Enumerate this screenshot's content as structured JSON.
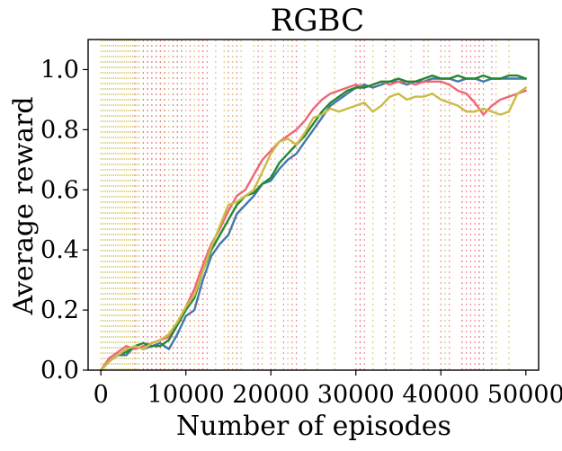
{
  "chart_data": {
    "type": "line",
    "title": "RGBC",
    "xlabel": "Number of episodes",
    "ylabel": "Average reward",
    "xlim": [
      -1500,
      51500
    ],
    "ylim": [
      0.0,
      1.1
    ],
    "x_ticks": [
      0,
      10000,
      20000,
      30000,
      40000,
      50000
    ],
    "x_tick_labels": [
      "0",
      "10000",
      "20000",
      "30000",
      "40000",
      "50000"
    ],
    "y_ticks": [
      0.0,
      0.2,
      0.4,
      0.6,
      0.8,
      1.0
    ],
    "y_tick_labels": [
      "0.0",
      "0.2",
      "0.4",
      "0.6",
      "0.8",
      "1.0"
    ],
    "grid": false,
    "legend": "none",
    "x": [
      0,
      1000,
      2000,
      3000,
      4000,
      5000,
      6000,
      7000,
      8000,
      9000,
      10000,
      11000,
      12000,
      13000,
      14000,
      15000,
      16000,
      17000,
      18000,
      19000,
      20000,
      21000,
      22000,
      23000,
      24000,
      25000,
      26000,
      27000,
      28000,
      29000,
      30000,
      31000,
      32000,
      33000,
      34000,
      35000,
      36000,
      37000,
      38000,
      39000,
      40000,
      41000,
      42000,
      43000,
      44000,
      45000,
      46000,
      47000,
      48000,
      49000,
      50000
    ],
    "series": [
      {
        "color": "#4477aa",
        "values": [
          0.0,
          0.03,
          0.05,
          0.05,
          0.08,
          0.07,
          0.08,
          0.09,
          0.07,
          0.12,
          0.18,
          0.2,
          0.3,
          0.38,
          0.42,
          0.45,
          0.52,
          0.55,
          0.58,
          0.62,
          0.63,
          0.67,
          0.7,
          0.72,
          0.76,
          0.8,
          0.84,
          0.88,
          0.9,
          0.92,
          0.94,
          0.95,
          0.94,
          0.95,
          0.96,
          0.96,
          0.95,
          0.96,
          0.96,
          0.97,
          0.97,
          0.97,
          0.96,
          0.97,
          0.97,
          0.96,
          0.97,
          0.97,
          0.97,
          0.97,
          0.97
        ]
      },
      {
        "color": "#ee6677",
        "values": [
          0.0,
          0.04,
          0.06,
          0.08,
          0.07,
          0.08,
          0.09,
          0.1,
          0.11,
          0.16,
          0.21,
          0.27,
          0.35,
          0.42,
          0.47,
          0.53,
          0.58,
          0.6,
          0.65,
          0.7,
          0.73,
          0.76,
          0.78,
          0.8,
          0.83,
          0.87,
          0.9,
          0.92,
          0.93,
          0.94,
          0.95,
          0.94,
          0.95,
          0.96,
          0.95,
          0.96,
          0.96,
          0.95,
          0.96,
          0.96,
          0.96,
          0.95,
          0.93,
          0.92,
          0.89,
          0.85,
          0.88,
          0.9,
          0.91,
          0.92,
          0.93
        ]
      },
      {
        "color": "#228833",
        "values": [
          0.0,
          0.03,
          0.05,
          0.06,
          0.08,
          0.09,
          0.08,
          0.08,
          0.1,
          0.15,
          0.2,
          0.24,
          0.33,
          0.4,
          0.45,
          0.5,
          0.55,
          0.58,
          0.59,
          0.62,
          0.64,
          0.69,
          0.72,
          0.75,
          0.78,
          0.82,
          0.86,
          0.89,
          0.91,
          0.93,
          0.94,
          0.94,
          0.95,
          0.96,
          0.96,
          0.97,
          0.96,
          0.96,
          0.97,
          0.98,
          0.97,
          0.97,
          0.98,
          0.97,
          0.97,
          0.98,
          0.97,
          0.97,
          0.98,
          0.98,
          0.97
        ]
      },
      {
        "color": "#ccbb44",
        "values": [
          0.0,
          0.03,
          0.05,
          0.07,
          0.08,
          0.07,
          0.09,
          0.1,
          0.12,
          0.16,
          0.21,
          0.25,
          0.33,
          0.41,
          0.48,
          0.55,
          0.56,
          0.58,
          0.6,
          0.66,
          0.72,
          0.76,
          0.77,
          0.75,
          0.79,
          0.84,
          0.85,
          0.87,
          0.86,
          0.87,
          0.88,
          0.89,
          0.86,
          0.88,
          0.91,
          0.92,
          0.9,
          0.91,
          0.91,
          0.92,
          0.9,
          0.89,
          0.88,
          0.86,
          0.86,
          0.87,
          0.86,
          0.85,
          0.86,
          0.92,
          0.94
        ]
      }
    ],
    "vertical_markers": [
      {
        "color": "#ccbb44",
        "x": [
          0,
          250,
          500,
          750,
          1000,
          1250,
          1500,
          1750,
          2000,
          2250,
          2500,
          2750,
          3000,
          3250,
          3500,
          3750,
          4000,
          4250,
          4500,
          5000,
          5500,
          6000,
          6500,
          7000,
          7500,
          8000,
          8500,
          9000,
          9500,
          10000,
          11000,
          12000,
          13500,
          14500,
          15500,
          16500,
          18000,
          19000,
          20500,
          22000,
          24000,
          25500,
          27500,
          30500,
          32000,
          34500,
          36500,
          38500,
          40500,
          42500,
          44500,
          46500,
          48000
        ]
      },
      {
        "color": "#ee6677",
        "x": [
          4000,
          5000,
          5500,
          6000,
          6500,
          7000,
          7500,
          8500,
          9000,
          9500,
          10500,
          11500,
          12000,
          12500,
          15000,
          16000,
          18500,
          20000,
          21500,
          22500,
          23000,
          30000,
          30500,
          31000,
          33500,
          38000,
          40000,
          41000,
          42500,
          43000,
          43500,
          44000,
          44500,
          45000,
          46000
        ]
      }
    ]
  }
}
